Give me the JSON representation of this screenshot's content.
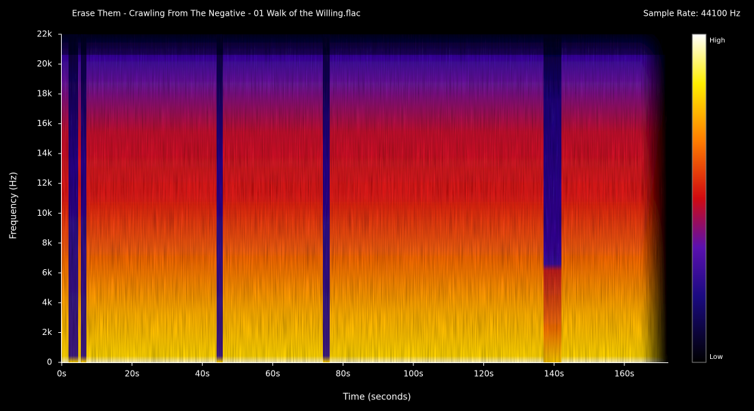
{
  "chart_data": {
    "type": "spectrogram",
    "title": "Erase Them - Crawling From The Negative - 01 Walk of the Willing.flac",
    "subtitle": "Sample Rate: 44100 Hz",
    "x_label": "Time (seconds)",
    "y_label": "Frequency (Hz)",
    "xlim": [
      0,
      172.5
    ],
    "ylim": [
      0,
      22000
    ],
    "xticks": [
      {
        "value": 0,
        "label": "0s"
      },
      {
        "value": 20,
        "label": "20s"
      },
      {
        "value": 40,
        "label": "40s"
      },
      {
        "value": 60,
        "label": "60s"
      },
      {
        "value": 80,
        "label": "80s"
      },
      {
        "value": 100,
        "label": "100s"
      },
      {
        "value": 120,
        "label": "120s"
      },
      {
        "value": 140,
        "label": "140s"
      },
      {
        "value": 160,
        "label": "160s"
      }
    ],
    "yticks": [
      0,
      {
        "value": 2000,
        "label": "2k"
      },
      {
        "value": 4000,
        "label": "4k"
      },
      {
        "value": 6000,
        "label": "6k"
      },
      {
        "value": 8000,
        "label": "8k"
      },
      {
        "value": 10000,
        "label": "10k"
      },
      {
        "value": 12000,
        "label": "12k"
      },
      {
        "value": 14000,
        "label": "14k"
      },
      {
        "value": 16000,
        "label": "16k"
      },
      {
        "value": 18000,
        "label": "18k"
      },
      {
        "value": 20000,
        "label": "20k"
      },
      {
        "value": 22000,
        "label": "22k"
      }
    ],
    "colorbar_labels": [
      "High",
      "Low"
    ]
  }
}
